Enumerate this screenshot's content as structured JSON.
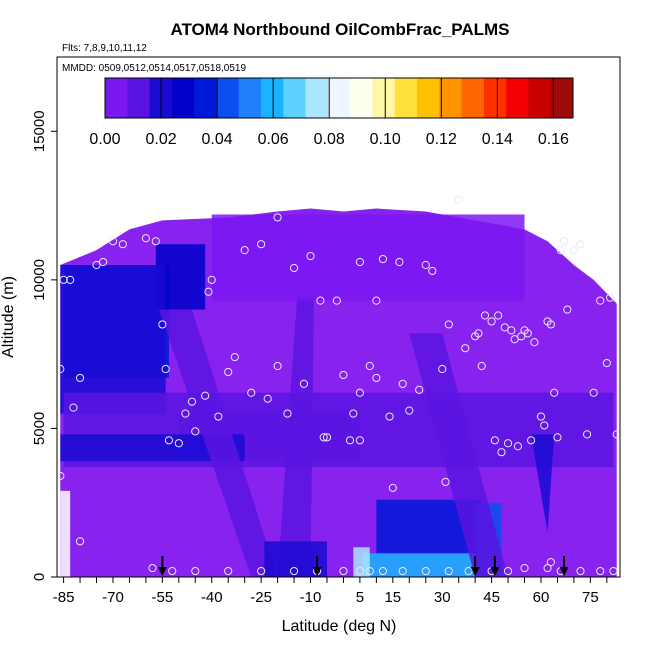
{
  "chart_data": {
    "type": "heatmap",
    "title": "ATOM4 Northbound OilCombFrac_PALMS",
    "annotations": [
      "Flts: 7,8,9,10,11,12",
      "MMDD: 0509,0512,0514,0517,0518,0519"
    ],
    "xlabel": "Latitude (deg N)",
    "ylabel": "Altitude (m)",
    "xlim": [
      -87,
      84
    ],
    "ylim": [
      0,
      17500
    ],
    "x_ticks": [
      -85,
      -80,
      -75,
      -70,
      -65,
      -60,
      -55,
      -50,
      -45,
      -40,
      -35,
      -30,
      -25,
      -20,
      -15,
      -10,
      -5,
      0,
      5,
      10,
      15,
      20,
      25,
      30,
      35,
      40,
      45,
      50,
      55,
      60,
      65,
      70,
      75,
      80
    ],
    "x_tick_labels": [
      "-85",
      "-70",
      "-55",
      "-40",
      "-25",
      "-10",
      "5",
      "15",
      "30",
      "45",
      "60",
      "75"
    ],
    "x_tick_label_values": [
      -85,
      -70,
      -55,
      -40,
      -25,
      -10,
      5,
      15,
      30,
      45,
      60,
      75
    ],
    "y_ticks": [
      0,
      5000,
      10000,
      15000
    ],
    "y_tick_labels": [
      "0",
      "5000",
      "10000",
      "15000"
    ],
    "colorbar": {
      "range": [
        0,
        0.167
      ],
      "tick_values": [
        0,
        0.02,
        0.04,
        0.06,
        0.08,
        0.1,
        0.12,
        0.14,
        0.16
      ],
      "tick_labels": [
        "0.00",
        "0.02",
        "0.04",
        "0.06",
        "0.08",
        "0.10",
        "0.12",
        "0.14",
        "0.16"
      ],
      "colors": [
        "#7a18f2",
        "#5a14e2",
        "#1a0ad2",
        "#0000c8",
        "#0018d8",
        "#0b4ff0",
        "#1f82fa",
        "#18b4ff",
        "#5fd0ff",
        "#a9e6ff",
        "#eef6ff",
        "#fffff0",
        "#fff7a8",
        "#ffe03c",
        "#ffc000",
        "#ff9300",
        "#ff6600",
        "#ff3000",
        "#f20000",
        "#c80000",
        "#9c0a0a"
      ],
      "orientation": "horizontal",
      "position": "top"
    },
    "background_color": "#8822ee",
    "coverage_profile": [
      [
        -86,
        0,
        10500
      ],
      [
        -75,
        0,
        11000
      ],
      [
        -65,
        0,
        11700
      ],
      [
        -55,
        0,
        12000
      ],
      [
        -35,
        0,
        12100
      ],
      [
        -20,
        0,
        12300
      ],
      [
        -10,
        0,
        12400
      ],
      [
        0,
        0,
        12300
      ],
      [
        10,
        0,
        12400
      ],
      [
        25,
        0,
        12300
      ],
      [
        40,
        0,
        12000
      ],
      [
        55,
        0,
        11700
      ],
      [
        62,
        0,
        11300
      ],
      [
        70,
        0,
        10500
      ],
      [
        76,
        0,
        10000
      ],
      [
        83,
        0,
        9200
      ]
    ],
    "features": [
      {
        "type": "rect",
        "x": [
          -86,
          -83
        ],
        "y": [
          0,
          2900
        ],
        "value": null
      },
      {
        "type": "rect",
        "x": [
          -85,
          -53
        ],
        "y": [
          6700,
          10500
        ],
        "value": 0.03
      },
      {
        "type": "rect",
        "x": [
          -57,
          -42
        ],
        "y": [
          9000,
          11200
        ],
        "value": 0.025
      },
      {
        "type": "rect",
        "x": [
          -86,
          -54
        ],
        "y": [
          5500,
          10500
        ],
        "value": 0.015
      },
      {
        "type": "rect",
        "x": [
          -85,
          82
        ],
        "y": [
          3700,
          6200
        ],
        "value": 0.01
      },
      {
        "type": "rect",
        "x": [
          -50,
          5
        ],
        "y": [
          4000,
          5600
        ],
        "value": 0.005
      },
      {
        "type": "rect",
        "x": [
          -86,
          -30
        ],
        "y": [
          3900,
          4800
        ],
        "value": 0.02
      },
      {
        "type": "poly",
        "points": [
          [
            -56,
            9000
          ],
          [
            -28,
            0
          ],
          [
            -20,
            0
          ],
          [
            -46,
            9000
          ]
        ],
        "value": 0.012
      },
      {
        "type": "poly",
        "points": [
          [
            -14,
            9500
          ],
          [
            -20,
            0
          ],
          [
            -10,
            0
          ],
          [
            -9,
            9500
          ]
        ],
        "value": 0.012
      },
      {
        "type": "rect",
        "x": [
          -24,
          -5
        ],
        "y": [
          0,
          1200
        ],
        "value": 0.02
      },
      {
        "type": "rect",
        "x": [
          6,
          42
        ],
        "y": [
          0,
          800
        ],
        "value": 0.055
      },
      {
        "type": "rect",
        "x": [
          3,
          8
        ],
        "y": [
          0,
          1000
        ],
        "value": 0.075
      },
      {
        "type": "rect",
        "x": [
          10,
          42
        ],
        "y": [
          800,
          2600
        ],
        "value": 0.035
      },
      {
        "type": "rect",
        "x": [
          40,
          48
        ],
        "y": [
          0,
          2500
        ],
        "value": 0.045
      },
      {
        "type": "poly",
        "points": [
          [
            20,
            8200
          ],
          [
            40,
            0
          ],
          [
            50,
            0
          ],
          [
            30,
            8200
          ]
        ],
        "value": 0.01
      },
      {
        "type": "poly",
        "points": [
          [
            57,
            4800
          ],
          [
            62,
            1500
          ],
          [
            64,
            4800
          ]
        ],
        "value": 0.015
      },
      {
        "type": "rect",
        "x": [
          -40,
          55
        ],
        "y": [
          9300,
          12200
        ],
        "value": 0.0
      }
    ],
    "sample_points": [
      [
        -86,
        7000
      ],
      [
        -86,
        3400
      ],
      [
        -85,
        10000
      ],
      [
        -83,
        10000
      ],
      [
        -82,
        5700
      ],
      [
        -80,
        6700
      ],
      [
        -75,
        10500
      ],
      [
        -73,
        10600
      ],
      [
        -70,
        11300
      ],
      [
        -67,
        11200
      ],
      [
        -60,
        11400
      ],
      [
        -57,
        11300
      ],
      [
        -55,
        8500
      ],
      [
        -54,
        7000
      ],
      [
        -53,
        4600
      ],
      [
        -50,
        4500
      ],
      [
        -48,
        5500
      ],
      [
        -46,
        5900
      ],
      [
        -45,
        4900
      ],
      [
        -42,
        6100
      ],
      [
        -40,
        10000
      ],
      [
        -41,
        9600
      ],
      [
        -38,
        5400
      ],
      [
        -35,
        6900
      ],
      [
        -33,
        7400
      ],
      [
        -30,
        11000
      ],
      [
        -28,
        6200
      ],
      [
        -25,
        11200
      ],
      [
        -23,
        6000
      ],
      [
        -20,
        12100
      ],
      [
        -20,
        7100
      ],
      [
        -17,
        5500
      ],
      [
        -15,
        10400
      ],
      [
        -12,
        6500
      ],
      [
        -10,
        10800
      ],
      [
        -7,
        9300
      ],
      [
        -6,
        4700
      ],
      [
        -5,
        4700
      ],
      [
        -2,
        9300
      ],
      [
        0,
        6800
      ],
      [
        2,
        4600
      ],
      [
        3,
        5500
      ],
      [
        5,
        4600
      ],
      [
        5,
        6200
      ],
      [
        5,
        10600
      ],
      [
        8,
        7100
      ],
      [
        10,
        9300
      ],
      [
        10,
        6700
      ],
      [
        12,
        10700
      ],
      [
        14,
        5400
      ],
      [
        15,
        3000
      ],
      [
        17,
        10600
      ],
      [
        18,
        6500
      ],
      [
        20,
        5600
      ],
      [
        23,
        6300
      ],
      [
        25,
        10500
      ],
      [
        27,
        10300
      ],
      [
        30,
        7000
      ],
      [
        31,
        3200
      ],
      [
        32,
        8500
      ],
      [
        35,
        12700
      ],
      [
        37,
        7700
      ],
      [
        40,
        8100
      ],
      [
        41,
        8200
      ],
      [
        42,
        7100
      ],
      [
        43,
        8800
      ],
      [
        45,
        8600
      ],
      [
        46,
        4600
      ],
      [
        47,
        8800
      ],
      [
        48,
        4200
      ],
      [
        49,
        8400
      ],
      [
        50,
        4500
      ],
      [
        51,
        8300
      ],
      [
        52,
        8000
      ],
      [
        53,
        4400
      ],
      [
        54,
        8100
      ],
      [
        55,
        8300
      ],
      [
        56,
        8200
      ],
      [
        57,
        4600
      ],
      [
        58,
        7900
      ],
      [
        60,
        5400
      ],
      [
        61,
        5100
      ],
      [
        62,
        8600
      ],
      [
        63,
        8500
      ],
      [
        64,
        6200
      ],
      [
        65,
        4700
      ],
      [
        66,
        11000
      ],
      [
        67,
        11300
      ],
      [
        68,
        9000
      ],
      [
        70,
        11000
      ],
      [
        72,
        11200
      ],
      [
        74,
        4800
      ],
      [
        76,
        6200
      ],
      [
        78,
        9300
      ],
      [
        80,
        7200
      ],
      [
        81,
        9400
      ],
      [
        83,
        4800
      ],
      [
        -80,
        1200
      ],
      [
        -58,
        300
      ],
      [
        -52,
        200
      ],
      [
        -45,
        200
      ],
      [
        -35,
        200
      ],
      [
        -25,
        200
      ],
      [
        -15,
        200
      ],
      [
        -8,
        200
      ],
      [
        0,
        200
      ],
      [
        5,
        200
      ],
      [
        8,
        200
      ],
      [
        12,
        200
      ],
      [
        18,
        200
      ],
      [
        25,
        200
      ],
      [
        32,
        200
      ],
      [
        38,
        200
      ],
      [
        45,
        200
      ],
      [
        50,
        200
      ],
      [
        55,
        300
      ],
      [
        62,
        300
      ],
      [
        63,
        500
      ],
      [
        66,
        200
      ],
      [
        72,
        200
      ],
      [
        78,
        200
      ],
      [
        82,
        200
      ]
    ],
    "arrows_latitudes": [
      -55,
      -8,
      40,
      46,
      67
    ]
  }
}
